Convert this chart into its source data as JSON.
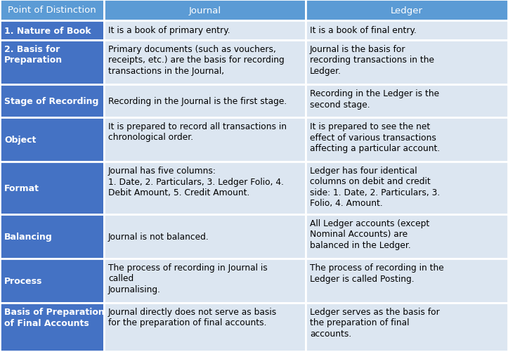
{
  "header": [
    "Point of Distinction",
    "Journal",
    "Ledger"
  ],
  "header_bg": "#5b9bd5",
  "header_text_color": "#ffffff",
  "row_label_bg": "#4472c4",
  "row_label_text_color": "#ffffff",
  "row_data_bg": "#dce6f1",
  "border_color": "#ffffff",
  "rows": [
    {
      "label": "1. Nature of Book",
      "journal": "It is a book of primary entry.",
      "ledger": "It is a book of final entry."
    },
    {
      "label": "2. Basis for\nPreparation",
      "journal": "Primary documents (such as vouchers,\nreceipts, etc.) are the basis for recording\ntransactions in the Journal,",
      "ledger": "Journal is the basis for\nrecording transactions in the\nLedger."
    },
    {
      "label": "Stage of Recording",
      "journal": "Recording in the Journal is the first stage.",
      "ledger": "Recording in the Ledger is the\nsecond stage."
    },
    {
      "label": "Object",
      "journal": "It is prepared to record all transactions in\nchronological order.",
      "ledger": "It is prepared to see the net\neffect of various transactions\naffecting a particular account."
    },
    {
      "label": "Format",
      "journal": "Journal has five columns:\n1. Date, 2. Particulars, 3. Ledger Folio, 4.\nDebit Amount, 5. Credit Amount.",
      "ledger": "Ledger has four identical\ncolumns on debit and credit\nside: 1. Date, 2. Particulars, 3.\nFolio, 4. Amount."
    },
    {
      "label": "Balancing",
      "journal": "Journal is not balanced.",
      "ledger": "All Ledger accounts (except\nNominal Accounts) are\nbalanced in the Ledger."
    },
    {
      "label": "Process",
      "journal": "The process of recording in Journal is\ncalled\nJournalising.",
      "ledger": "The process of recording in the\nLedger is called Posting."
    },
    {
      "label": "Basis of Preparation\nof Final Accounts",
      "journal": "Journal directly does not serve as basis\nfor the preparation of final accounts.",
      "ledger": "Ledger serves as the basis for\nthe preparation of final\naccounts."
    }
  ],
  "figsize": [
    7.23,
    5.02
  ],
  "dpi": 100
}
